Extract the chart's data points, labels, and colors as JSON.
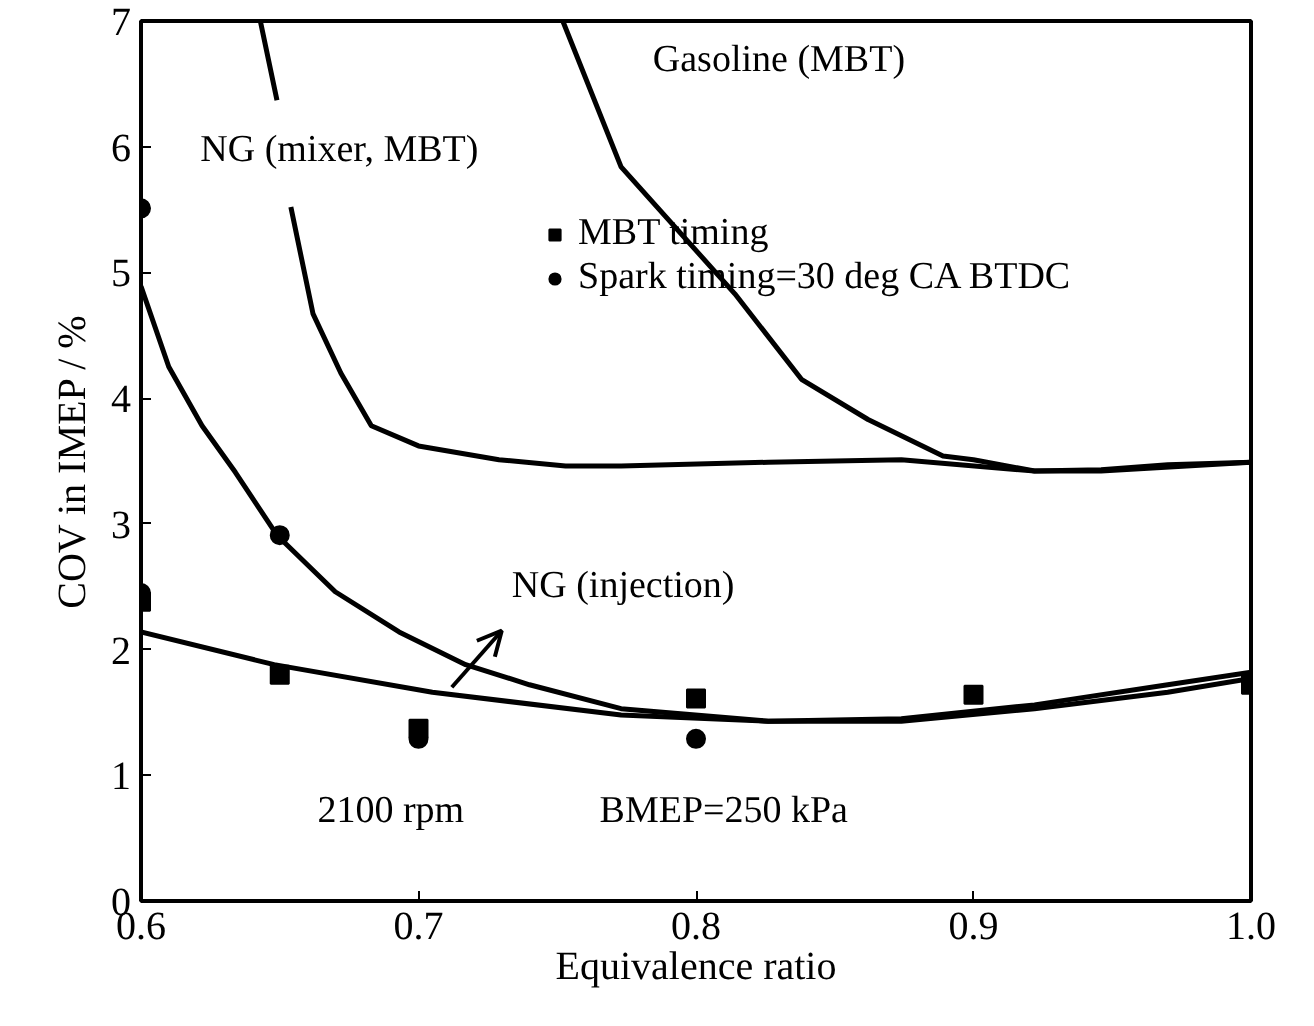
{
  "chart_data": {
    "type": "line",
    "xlabel": "Equivalence ratio",
    "ylabel": "COV in IMEP / %",
    "xlim": [
      0.6,
      1.0
    ],
    "ylim": [
      0,
      7
    ],
    "xticks": [
      0.6,
      0.7,
      0.8,
      0.9,
      {
        "value": 1.0,
        "label": "1.0"
      }
    ],
    "yticks": [
      0,
      1,
      2,
      3,
      4,
      5,
      6,
      7
    ],
    "grid": false,
    "legend": "top",
    "marker": "none",
    "line_style": "solid",
    "series": [
      {
        "name": "Gasoline (MBT)",
        "color": "#000000",
        "x": [
          0.752,
          0.773,
          0.814,
          0.838,
          0.862,
          0.889,
          0.9,
          0.922,
          0.946,
          0.97,
          1.0
        ],
        "values": [
          7,
          5.84,
          4.83,
          4.15,
          3.83,
          3.54,
          3.51,
          3.42,
          3.43,
          3.47,
          3.49
        ]
      },
      {
        "name": "NG (mixer, MBT)",
        "color": "#000000",
        "x": [
          0.643,
          0.649,
          0.651,
          0.654,
          0.662,
          0.672,
          0.683,
          0.7,
          0.729,
          0.753,
          0.773,
          0.826,
          0.874,
          0.922,
          0.946,
          1.0
        ],
        "values": [
          7,
          6.37,
          null,
          5.52,
          4.67,
          4.2,
          3.78,
          3.62,
          3.51,
          3.46,
          3.46,
          3.49,
          3.51,
          3.42,
          3.42,
          3.49
        ]
      },
      {
        "color": "#000000",
        "x": [
          0.6,
          0.61,
          0.622,
          0.634,
          0.649,
          0.67,
          0.693,
          0.717,
          0.74,
          0.773,
          0.826,
          0.874,
          0.922,
          0.97,
          1.0
        ],
        "values": [
          4.89,
          4.25,
          3.78,
          3.41,
          2.91,
          2.46,
          2.14,
          1.88,
          1.72,
          1.53,
          1.43,
          1.43,
          1.53,
          1.66,
          1.77
        ]
      },
      {
        "color": "#000000",
        "x": [
          0.6,
          0.648,
          0.705,
          0.773,
          0.826,
          0.874,
          0.922,
          0.97,
          1.0
        ],
        "values": [
          2.14,
          1.88,
          1.66,
          1.48,
          1.43,
          1.45,
          1.56,
          1.72,
          1.82
        ]
      },
      {
        "type": "scatter",
        "marker": "square",
        "name": "MBT timing",
        "color": "#000000",
        "x": [
          0.6,
          0.65,
          0.7,
          0.8,
          0.9,
          1.0
        ],
        "values": [
          2.38,
          1.8,
          1.37,
          1.61,
          1.64,
          1.72
        ]
      },
      {
        "type": "scatter",
        "marker": "circle",
        "name": "Spark timing=30 deg CA BTDC",
        "color": "#000000",
        "x": [
          0.6,
          0.6,
          0.65,
          0.7,
          0.8
        ],
        "values": [
          5.51,
          2.45,
          2.91,
          1.29,
          1.29
        ]
      }
    ],
    "annotations": [
      {
        "text": "NG (injection)",
        "x": 0.712,
        "y": 1.7
      },
      "2100 rpm",
      "BMEP=250 kPa"
    ]
  }
}
